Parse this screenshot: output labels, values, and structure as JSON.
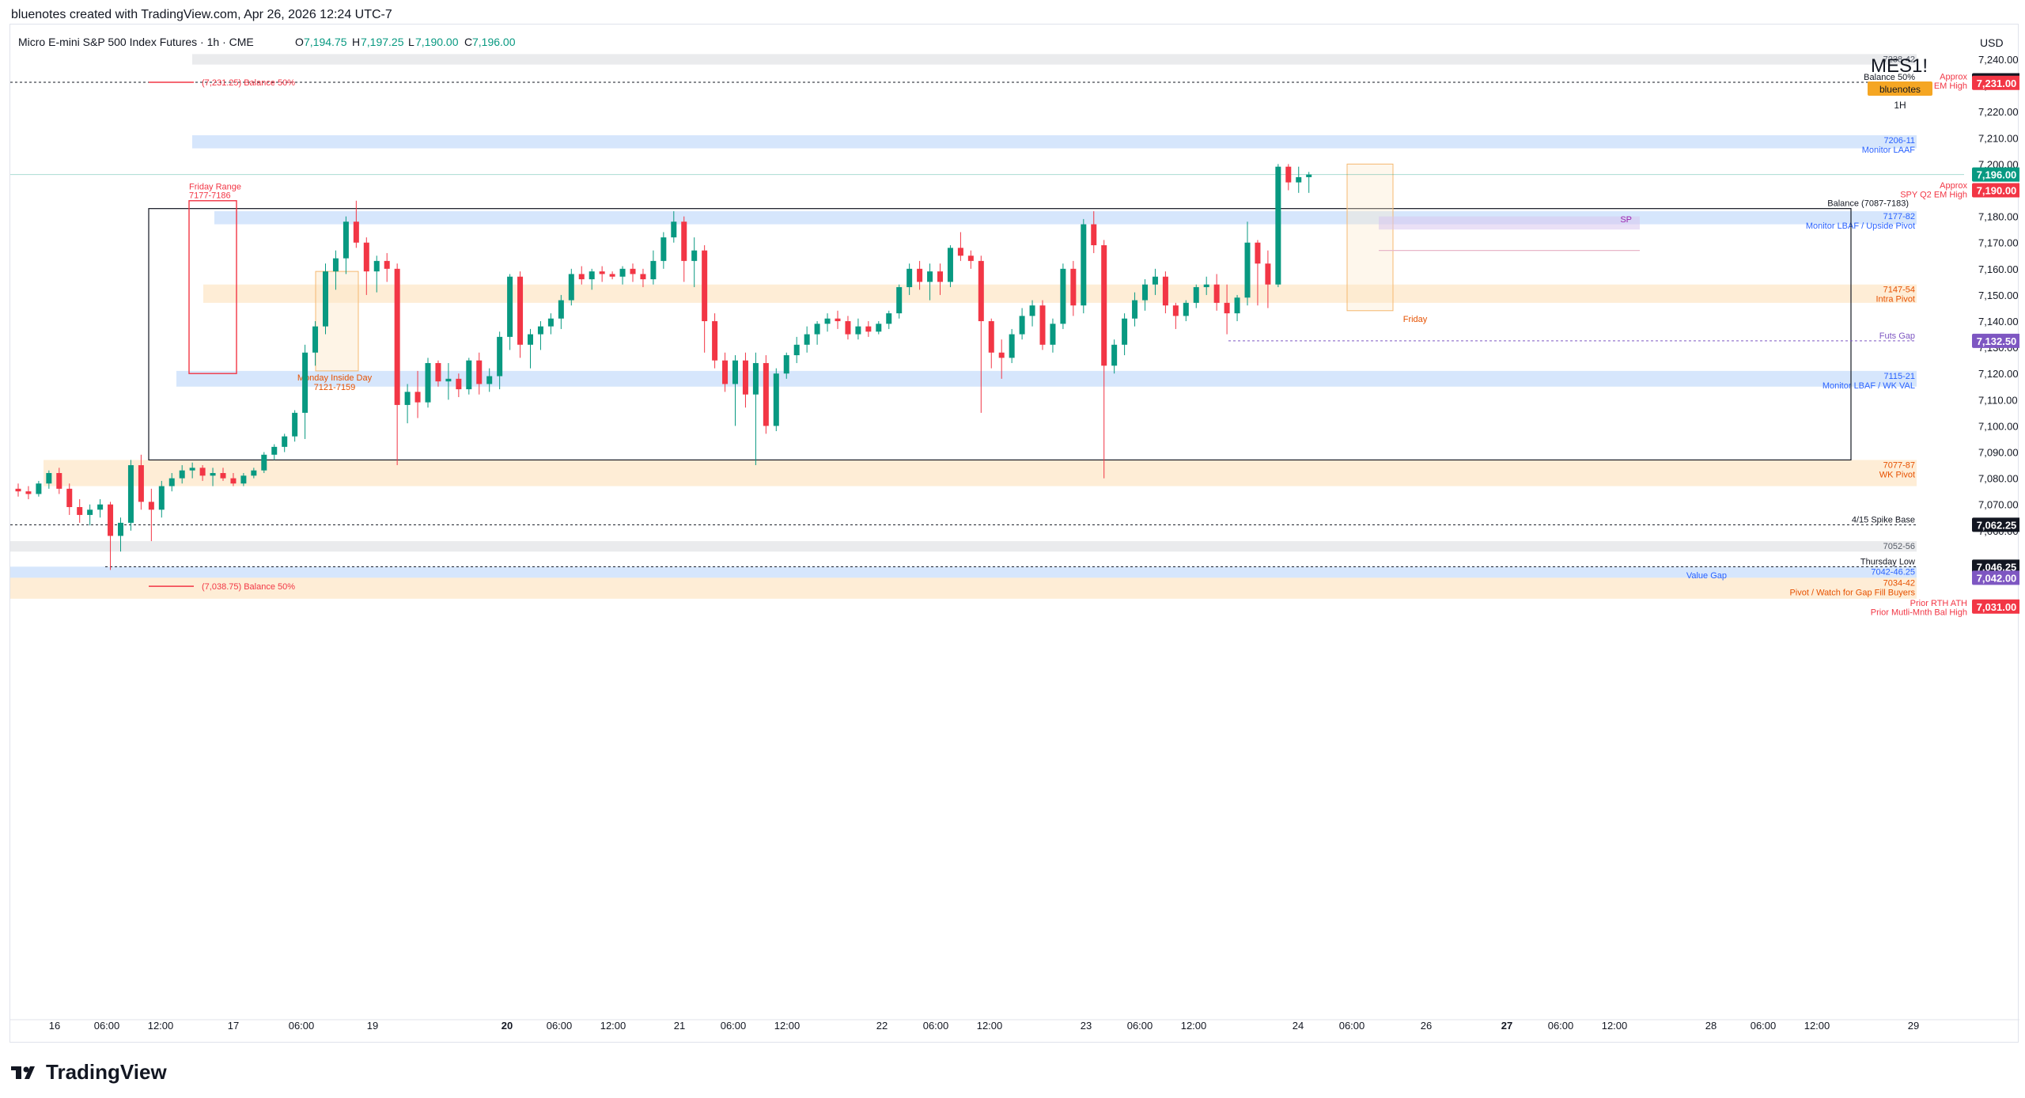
{
  "header": {
    "attribution": "bluenotes created with TradingView.com, Apr 26, 2026 12:24 UTC-7"
  },
  "symbol_bar": {
    "name": "Micro E-mini S&P 500 Index Futures · 1h · CME",
    "o_label": "O",
    "o": "7,194.75",
    "h_label": "H",
    "h": "7,197.25",
    "l_label": "L",
    "l": "7,190.00",
    "c_label": "C",
    "c": "7,196.00"
  },
  "currency": "USD",
  "watermark": {
    "symbol": "MES1!",
    "author": "bluenotes",
    "interval": "1H"
  },
  "footer": {
    "logo_text": "TradingView"
  },
  "colors": {
    "up": "#089981",
    "down": "#f23645",
    "blue_zone": "#2962ff",
    "orange_zone": "#ff9800",
    "purple": "#7e57c2"
  },
  "chart_data": {
    "type": "candlestick",
    "title": "Micro E-mini S&P 500 Index Futures · 1h · CME",
    "ylim": [
      7023,
      7248
    ],
    "y_ticks": [
      "7,060.00",
      "7,070.00",
      "7,080.00",
      "7,090.00",
      "7,100.00",
      "7,110.00",
      "7,120.00",
      "7,130.00",
      "7,140.00",
      "7,150.00",
      "7,160.00",
      "7,170.00",
      "7,180.00",
      "7,190.00",
      "7,200.00",
      "7,210.00",
      "7,220.00",
      "7,230.00",
      "7,240.00"
    ],
    "x_labels": [
      "16",
      "06:00",
      "12:00",
      "17",
      "06:00",
      "19",
      "20",
      "06:00",
      "12:00",
      "21",
      "06:00",
      "12:00",
      "22",
      "06:00",
      "12:00",
      "23",
      "06:00",
      "12:00",
      "24",
      "06:00",
      "26",
      "27",
      "06:00",
      "12:00",
      "28",
      "06:00",
      "12:00",
      "29"
    ],
    "last_price": "7,196.00",
    "price_tags": [
      {
        "label": "7,232.00",
        "value": 7232,
        "style": "dark"
      },
      {
        "label": "7,231.00",
        "value": 7231,
        "style": "red"
      },
      {
        "label": "7,196.00",
        "value": 7196,
        "style": "green"
      },
      {
        "label": "7,190.00",
        "value": 7190,
        "style": "red"
      },
      {
        "label": "7,132.50",
        "value": 7132.5,
        "style": "purple"
      },
      {
        "label": "7,062.25",
        "value": 7062.25,
        "style": "dark"
      },
      {
        "label": "7,046.25",
        "value": 7046.25,
        "style": "dark"
      },
      {
        "label": "7,042.00",
        "value": 7042,
        "style": "purple"
      },
      {
        "label": "7,031.00",
        "value": 7031,
        "style": "red"
      }
    ],
    "tag_notes": [
      {
        "text": "Approx",
        "value": 7233.5
      },
      {
        "text": "SPX Q2 EM High",
        "value": 7230
      },
      {
        "text": "Approx",
        "value": 7192
      },
      {
        "text": "SPY Q2 EM High",
        "value": 7188.5
      },
      {
        "text": "Prior RTH ATH",
        "value": 7032.5
      },
      {
        "text": "Prior Mutli-Mnth Bal High",
        "value": 7029
      }
    ],
    "zones": [
      {
        "from": 7238,
        "to": 7242,
        "kind": "gray",
        "labels": [
          "7238-42"
        ]
      },
      {
        "from": 7206,
        "to": 7211,
        "kind": "blue",
        "labels": [
          "7206-11",
          "Monitor LAAF"
        ]
      },
      {
        "from": 7177,
        "to": 7182,
        "kind": "blue",
        "labels": [
          "7177-82",
          "Monitor LBAF / Upside Pivot"
        ]
      },
      {
        "from": 7147,
        "to": 7154,
        "kind": "orange",
        "labels": [
          "7147-54",
          "Intra Pivot"
        ]
      },
      {
        "from": 7115,
        "to": 7121,
        "kind": "blue",
        "labels": [
          "7115-21",
          "Monitor LBAF / WK VAL"
        ]
      },
      {
        "from": 7077,
        "to": 7087,
        "kind": "orange",
        "labels": [
          "7077-87",
          "WK Pivot"
        ]
      },
      {
        "from": 7052,
        "to": 7056,
        "kind": "gray",
        "labels": [
          "7052-56"
        ]
      },
      {
        "from": 7042,
        "to": 7046.25,
        "kind": "blue",
        "labels": [
          "7042-46.25"
        ]
      },
      {
        "from": 7034,
        "to": 7042,
        "kind": "orange",
        "labels": [
          "7034-42",
          "Pivot / Watch for Gap Fill Buyers"
        ]
      }
    ],
    "levels": [
      {
        "value": 7231.25,
        "label": "Balance 50%"
      },
      {
        "value": 7132.5,
        "label": "Futs Gap"
      },
      {
        "value": 7062.25,
        "label": "4/15 Spike Base"
      },
      {
        "value": 7046.25,
        "label": "Thursday Low"
      }
    ],
    "annotations": {
      "balance_50_top": "(7,231.25)  Balance 50%",
      "balance_50_bottom": "(7,038.75)  Balance 50%",
      "balance_box": "Balance (7087-7183)",
      "friday_range": [
        "Friday Range",
        "7177-7186"
      ],
      "monday_inside": [
        "Monday Inside Day",
        "7121-7159"
      ],
      "friday": "Friday",
      "sp": "SP",
      "value_gap": "Value Gap"
    },
    "candles": [
      [
        7076,
        7078,
        7073,
        7075
      ],
      [
        7075,
        7077,
        7072,
        7074
      ],
      [
        7074,
        7079,
        7073,
        7078
      ],
      [
        7078,
        7083,
        7076,
        7082
      ],
      [
        7082,
        7084,
        7074,
        7076
      ],
      [
        7076,
        7078,
        7066,
        7069
      ],
      [
        7069,
        7072,
        7063,
        7066
      ],
      [
        7066,
        7070,
        7062,
        7068
      ],
      [
        7068,
        7072,
        7065,
        7070
      ],
      [
        7070,
        7071,
        7045,
        7058
      ],
      [
        7058,
        7065,
        7052,
        7063
      ],
      [
        7063,
        7087,
        7060,
        7085
      ],
      [
        7085,
        7089,
        7068,
        7071
      ],
      [
        7071,
        7076,
        7056,
        7068
      ],
      [
        7068,
        7079,
        7065,
        7077
      ],
      [
        7077,
        7082,
        7075,
        7080
      ],
      [
        7080,
        7085,
        7078,
        7083
      ],
      [
        7083,
        7086,
        7080,
        7084
      ],
      [
        7084,
        7085,
        7079,
        7081
      ],
      [
        7081,
        7084,
        7077,
        7082
      ],
      [
        7082,
        7084,
        7079,
        7080
      ],
      [
        7080,
        7082,
        7077,
        7078
      ],
      [
        7078,
        7082,
        7077,
        7081
      ],
      [
        7081,
        7084,
        7080,
        7083
      ],
      [
        7083,
        7090,
        7082,
        7089
      ],
      [
        7089,
        7093,
        7087,
        7092
      ],
      [
        7092,
        7097,
        7090,
        7096
      ],
      [
        7096,
        7106,
        7094,
        7105
      ],
      [
        7105,
        7131,
        7095,
        7128
      ],
      [
        7128,
        7140,
        7123,
        7138
      ],
      [
        7138,
        7162,
        7135,
        7159
      ],
      [
        7159,
        7167,
        7152,
        7164
      ],
      [
        7164,
        7180,
        7158,
        7178
      ],
      [
        7178,
        7186,
        7168,
        7170
      ],
      [
        7170,
        7172,
        7150,
        7159
      ],
      [
        7159,
        7165,
        7151,
        7163
      ],
      [
        7163,
        7166,
        7155,
        7160
      ],
      [
        7160,
        7162,
        7085,
        7108
      ],
      [
        7108,
        7116,
        7101,
        7113
      ],
      [
        7113,
        7121,
        7103,
        7109
      ],
      [
        7109,
        7126,
        7107,
        7124
      ],
      [
        7124,
        7125,
        7115,
        7117
      ],
      [
        7117,
        7124,
        7110,
        7118
      ],
      [
        7118,
        7120,
        7111,
        7114
      ],
      [
        7114,
        7126,
        7112,
        7125
      ],
      [
        7125,
        7128,
        7112,
        7116
      ],
      [
        7116,
        7122,
        7113,
        7119
      ],
      [
        7119,
        7136,
        7114,
        7134
      ],
      [
        7134,
        7158,
        7129,
        7157
      ],
      [
        7157,
        7159,
        7126,
        7131
      ],
      [
        7131,
        7137,
        7122,
        7135
      ],
      [
        7135,
        7140,
        7129,
        7138
      ],
      [
        7138,
        7143,
        7135,
        7141
      ],
      [
        7141,
        7150,
        7137,
        7148
      ],
      [
        7148,
        7160,
        7146,
        7158
      ],
      [
        7158,
        7161,
        7154,
        7156
      ],
      [
        7156,
        7160,
        7152,
        7159
      ],
      [
        7159,
        7161,
        7155,
        7158
      ],
      [
        7158,
        7159,
        7156,
        7157
      ],
      [
        7157,
        7161,
        7154,
        7160
      ],
      [
        7160,
        7162,
        7155,
        7158
      ],
      [
        7158,
        7160,
        7153,
        7156
      ],
      [
        7156,
        7167,
        7154,
        7163
      ],
      [
        7163,
        7174,
        7160,
        7172
      ],
      [
        7172,
        7182,
        7170,
        7178
      ],
      [
        7178,
        7180,
        7155,
        7163
      ],
      [
        7163,
        7172,
        7153,
        7167
      ],
      [
        7167,
        7169,
        7128,
        7140
      ],
      [
        7140,
        7143,
        7122,
        7125
      ],
      [
        7125,
        7128,
        7113,
        7116
      ],
      [
        7116,
        7127,
        7100,
        7125
      ],
      [
        7125,
        7128,
        7107,
        7112
      ],
      [
        7112,
        7128,
        7085,
        7124
      ],
      [
        7124,
        7127,
        7097,
        7100
      ],
      [
        7100,
        7122,
        7098,
        7120
      ],
      [
        7120,
        7128,
        7118,
        7127
      ],
      [
        7127,
        7134,
        7124,
        7131
      ],
      [
        7131,
        7138,
        7128,
        7135
      ],
      [
        7135,
        7140,
        7131,
        7139
      ],
      [
        7139,
        7143,
        7136,
        7141
      ],
      [
        7141,
        7144,
        7137,
        7140
      ],
      [
        7140,
        7142,
        7133,
        7135
      ],
      [
        7135,
        7141,
        7133,
        7138
      ],
      [
        7138,
        7140,
        7134,
        7136
      ],
      [
        7136,
        7140,
        7135,
        7139
      ],
      [
        7139,
        7144,
        7137,
        7143
      ],
      [
        7143,
        7154,
        7141,
        7153
      ],
      [
        7153,
        7162,
        7150,
        7160
      ],
      [
        7160,
        7163,
        7152,
        7155
      ],
      [
        7155,
        7162,
        7148,
        7159
      ],
      [
        7159,
        7162,
        7150,
        7155
      ],
      [
        7155,
        7169,
        7153,
        7168
      ],
      [
        7168,
        7174,
        7163,
        7165
      ],
      [
        7165,
        7167,
        7160,
        7163
      ],
      [
        7163,
        7165,
        7105,
        7140
      ],
      [
        7140,
        7141,
        7122,
        7128
      ],
      [
        7128,
        7133,
        7118,
        7126
      ],
      [
        7126,
        7137,
        7124,
        7135
      ],
      [
        7135,
        7145,
        7133,
        7142
      ],
      [
        7142,
        7148,
        7138,
        7146
      ],
      [
        7146,
        7148,
        7129,
        7131
      ],
      [
        7131,
        7141,
        7128,
        7139
      ],
      [
        7139,
        7162,
        7137,
        7160
      ],
      [
        7160,
        7163,
        7142,
        7146
      ],
      [
        7146,
        7179,
        7143,
        7177
      ],
      [
        7177,
        7182,
        7166,
        7169
      ],
      [
        7169,
        7171,
        7080,
        7123
      ],
      [
        7123,
        7133,
        7120,
        7131
      ],
      [
        7131,
        7143,
        7127,
        7141
      ],
      [
        7141,
        7151,
        7138,
        7148
      ],
      [
        7148,
        7156,
        7144,
        7154
      ],
      [
        7154,
        7160,
        7150,
        7157
      ],
      [
        7157,
        7159,
        7143,
        7146
      ],
      [
        7146,
        7147,
        7137,
        7142
      ],
      [
        7142,
        7148,
        7140,
        7147
      ],
      [
        7147,
        7154,
        7145,
        7153
      ],
      [
        7153,
        7157,
        7150,
        7154
      ],
      [
        7154,
        7158,
        7144,
        7147
      ],
      [
        7147,
        7154,
        7135,
        7143
      ],
      [
        7143,
        7150,
        7140,
        7149
      ],
      [
        7149,
        7178,
        7146,
        7170
      ],
      [
        7170,
        7171,
        7146,
        7162
      ],
      [
        7162,
        7167,
        7145,
        7154
      ],
      [
        7154,
        7200,
        7153,
        7199
      ],
      [
        7199,
        7200,
        7190,
        7193
      ],
      [
        7193,
        7199,
        7189,
        7195
      ],
      [
        7195,
        7197,
        7189,
        7196
      ]
    ]
  }
}
